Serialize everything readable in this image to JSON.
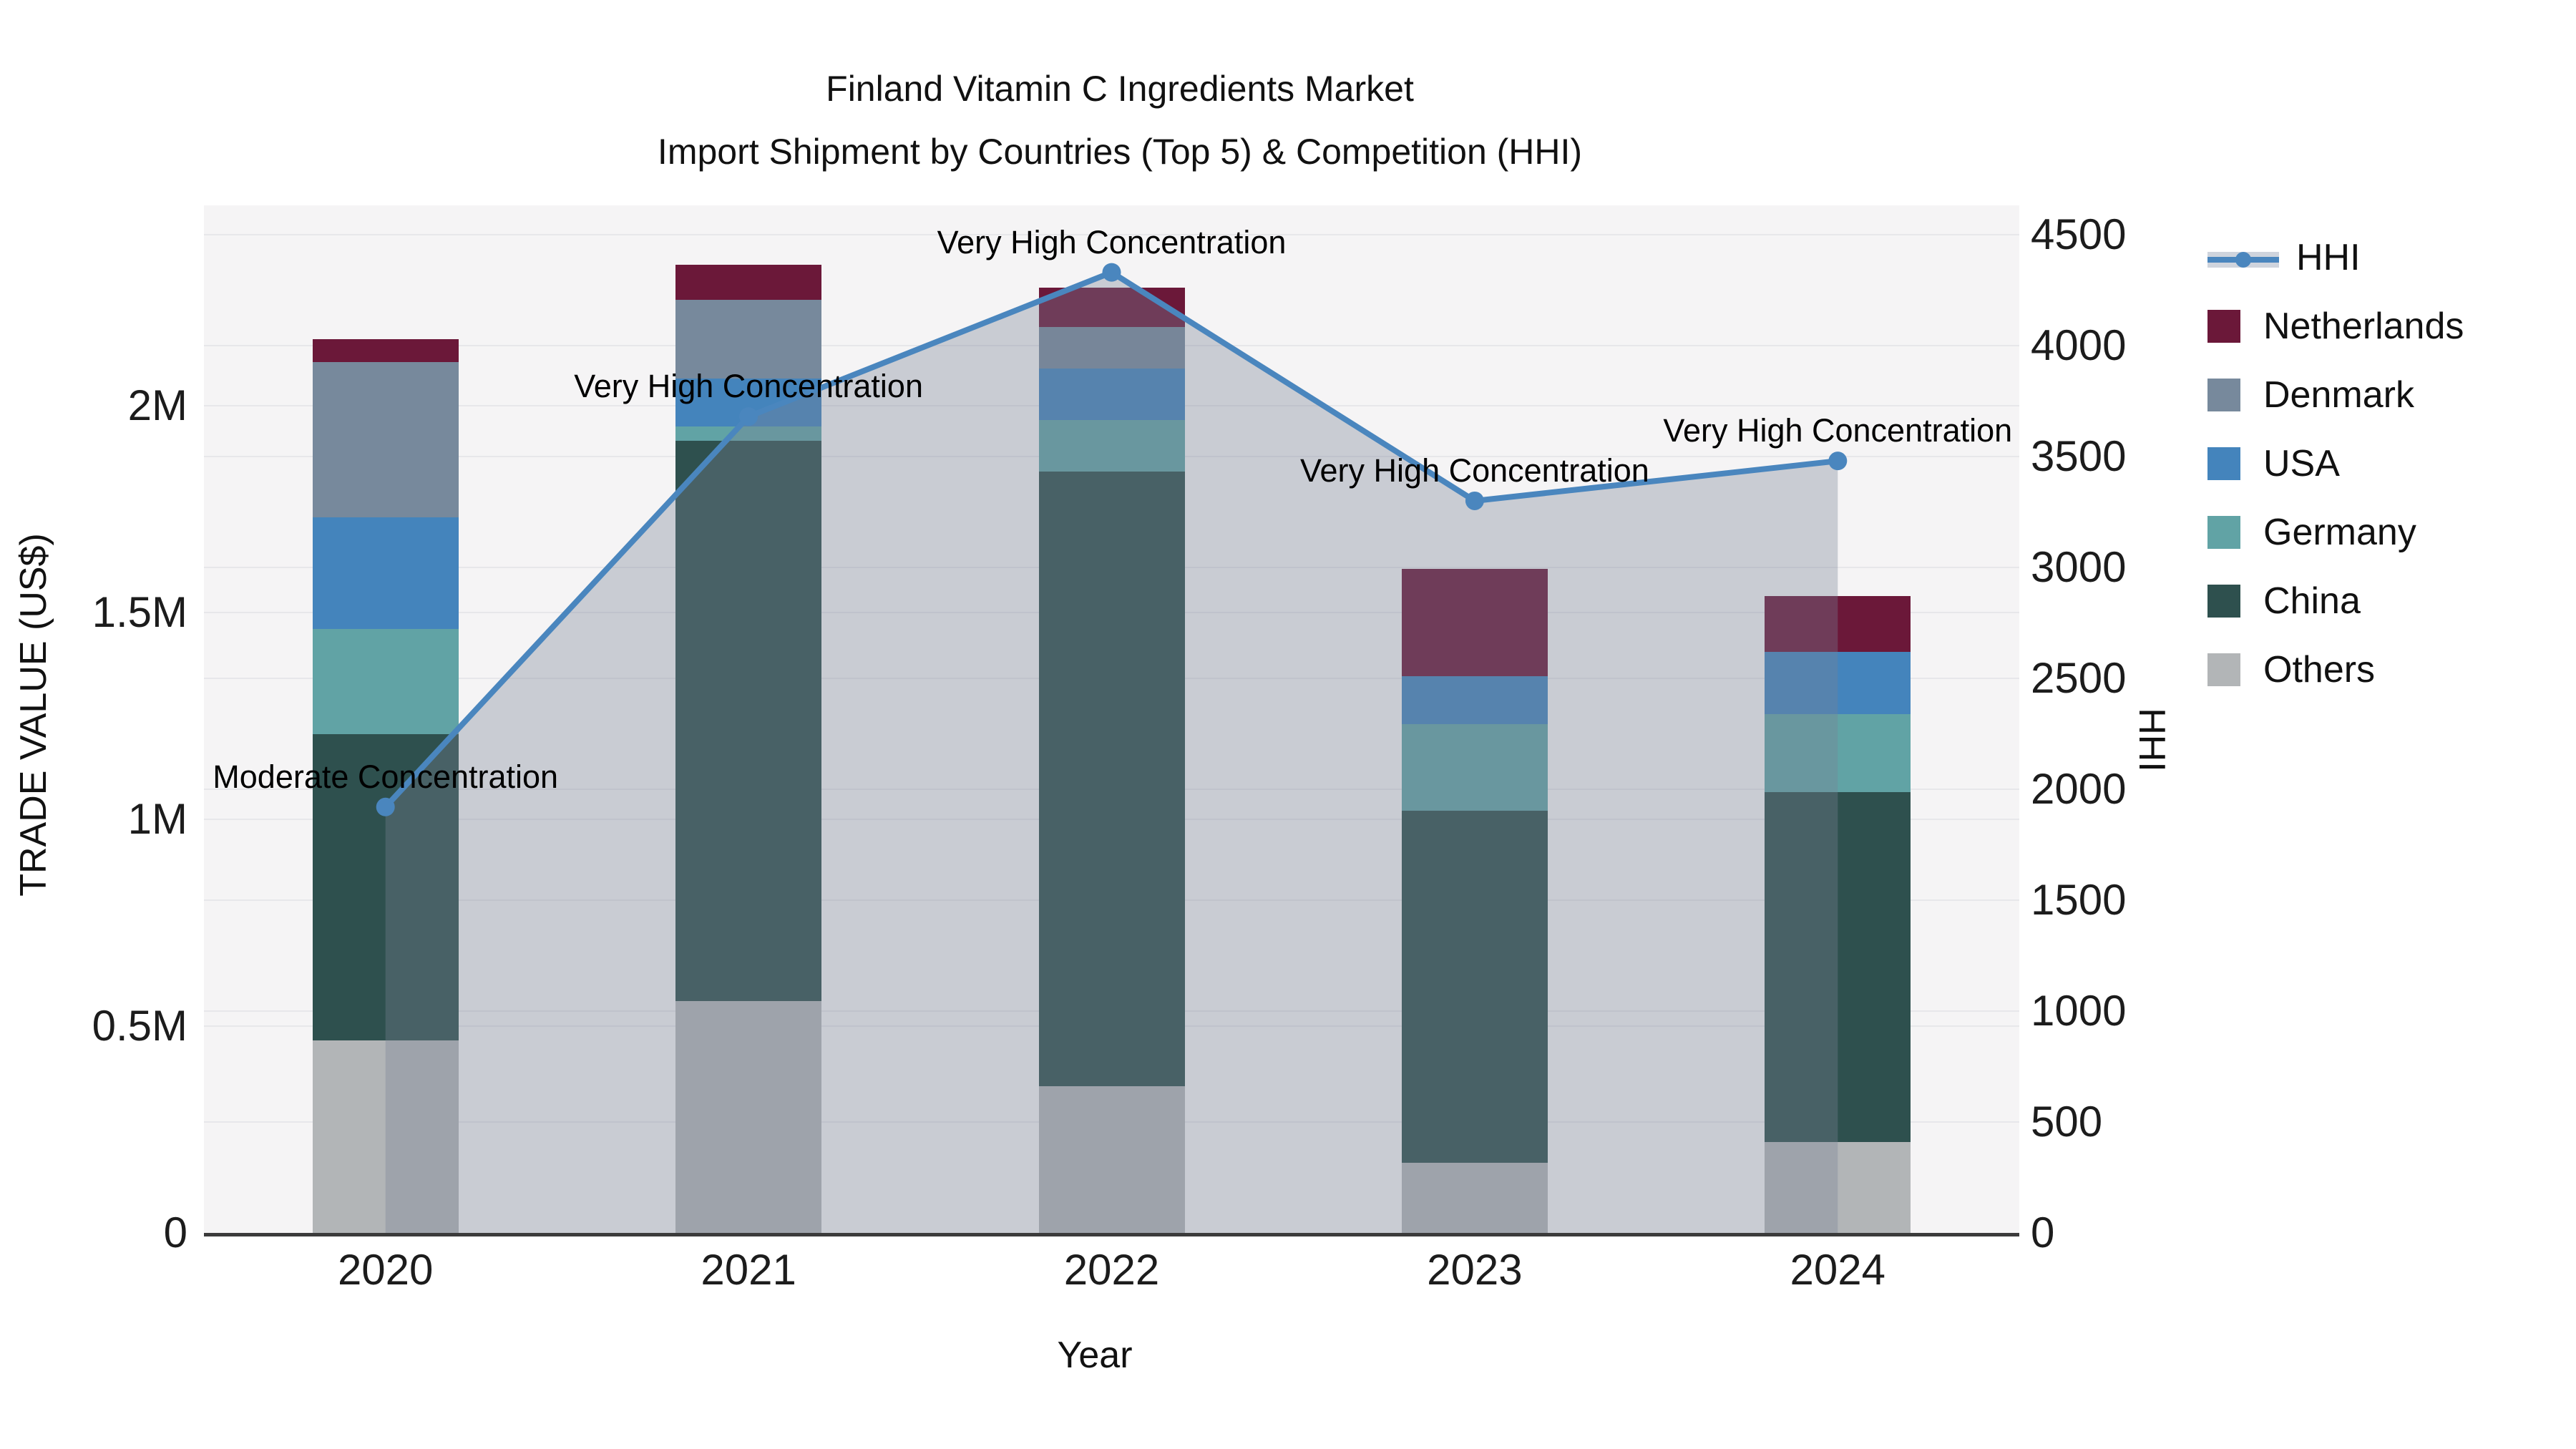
{
  "title": {
    "line1": "Finland Vitamin C Ingredients Market",
    "line2": "Import Shipment by Countries (Top 5) & Competition (HHI)"
  },
  "axes": {
    "x_label": "Year",
    "y_left_label": "TRADE VALUE (US$)",
    "y_right_label": "HHI",
    "y_left_ticks": [
      {
        "label": "0",
        "value": 0
      },
      {
        "label": "0.5M",
        "value": 500000
      },
      {
        "label": "1M",
        "value": 1000000
      },
      {
        "label": "1.5M",
        "value": 1500000
      },
      {
        "label": "2M",
        "value": 2000000
      }
    ],
    "y_left_axis_max": 2484000,
    "y_right_ticks": [
      {
        "label": "0",
        "value": 0
      },
      {
        "label": "500",
        "value": 500
      },
      {
        "label": "1000",
        "value": 1000
      },
      {
        "label": "1500",
        "value": 1500
      },
      {
        "label": "2000",
        "value": 2000
      },
      {
        "label": "2500",
        "value": 2500
      },
      {
        "label": "3000",
        "value": 3000
      },
      {
        "label": "3500",
        "value": 3500
      },
      {
        "label": "4000",
        "value": 4000
      },
      {
        "label": "4500",
        "value": 4500
      }
    ],
    "y_right_axis_max": 4632
  },
  "legend": [
    {
      "label": "HHI",
      "type": "line",
      "color": "#4a86be"
    },
    {
      "label": "Netherlands",
      "type": "swatch",
      "color": "#6b1839"
    },
    {
      "label": "Denmark",
      "type": "swatch",
      "color": "#77899c"
    },
    {
      "label": "USA",
      "type": "swatch",
      "color": "#4484bc"
    },
    {
      "label": "Germany",
      "type": "swatch",
      "color": "#61a3a5"
    },
    {
      "label": "China",
      "type": "swatch",
      "color": "#2e504e"
    },
    {
      "label": "Others",
      "type": "swatch",
      "color": "#b2b5b7"
    }
  ],
  "chart_data": {
    "type": "bar+line",
    "title": "Finland Vitamin C Ingredients Market — Import Shipment by Countries (Top 5) & Competition (HHI)",
    "xlabel": "Year",
    "ylabel_left": "TRADE VALUE (US$)",
    "ylabel_right": "HHI",
    "categories": [
      "2020",
      "2021",
      "2022",
      "2023",
      "2024"
    ],
    "stack_order_bottom_to_top": [
      "Others",
      "China",
      "Germany",
      "USA",
      "Denmark",
      "Netherlands"
    ],
    "series": [
      {
        "name": "Others",
        "color": "#b2b5b7",
        "values": [
          465000,
          560000,
          355000,
          170000,
          220000
        ]
      },
      {
        "name": "China",
        "color": "#2e504e",
        "values": [
          740000,
          1355000,
          1485000,
          850000,
          845000
        ]
      },
      {
        "name": "Germany",
        "color": "#61a3a5",
        "values": [
          255000,
          35000,
          125000,
          210000,
          190000
        ]
      },
      {
        "name": "USA",
        "color": "#4484bc",
        "values": [
          270000,
          115000,
          125000,
          115000,
          150000
        ]
      },
      {
        "name": "Denmark",
        "color": "#77899c",
        "values": [
          375000,
          190000,
          100000,
          0,
          0
        ]
      },
      {
        "name": "Netherlands",
        "color": "#6b1839",
        "values": [
          55000,
          85000,
          95000,
          260000,
          135000
        ]
      }
    ],
    "bar_totals": [
      2160000,
      2340000,
      2285000,
      1605000,
      1540000
    ],
    "line": {
      "name": "HHI",
      "color": "#4a86be",
      "area_fill": "rgba(119,130,150,0.35)",
      "values": [
        1920,
        3680,
        4330,
        3300,
        3480
      ],
      "annotations": [
        "Moderate Concentration",
        "Very High Concentration",
        "Very High Concentration",
        "Very High Concentration",
        "Very High Concentration"
      ]
    },
    "ylim_left": [
      0,
      2484000
    ],
    "ylim_right": [
      0,
      4632
    ],
    "grid": true,
    "legend_position": "right"
  }
}
